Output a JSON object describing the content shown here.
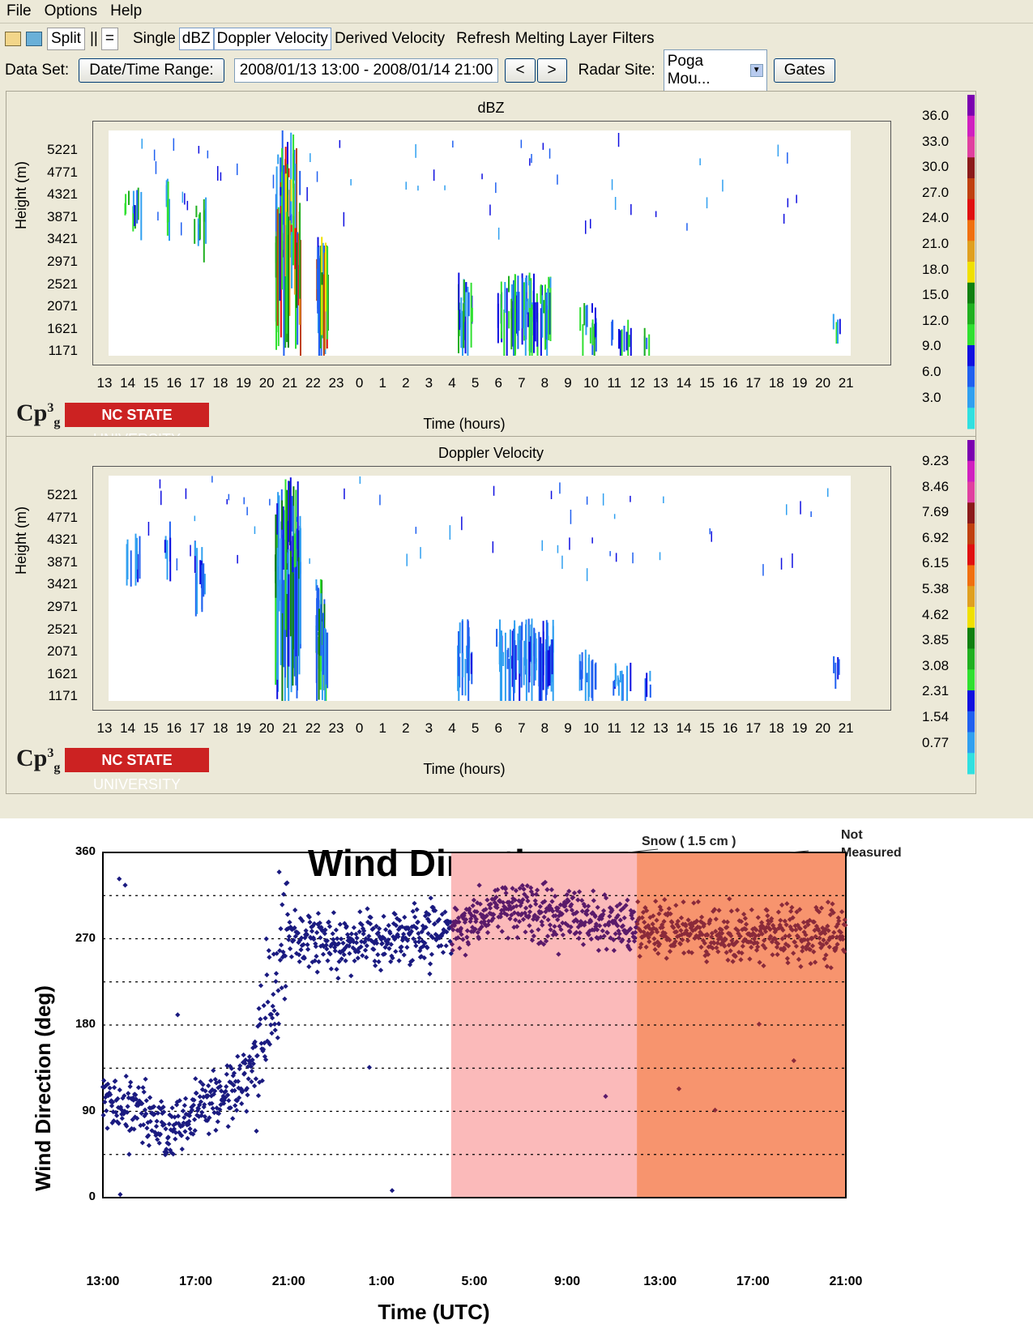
{
  "menu": [
    "File",
    "Options",
    "Help"
  ],
  "toolbar": {
    "split": "Split",
    "pipe": "||",
    "equals": "=",
    "single": "Single",
    "dbz": "dBZ",
    "doppler": "Doppler Velocity",
    "derived": "Derived Velocity",
    "refresh": "Refresh",
    "melting": "Melting Layer",
    "filters": "Filters"
  },
  "dataset": {
    "label": "Data Set:",
    "range_button": "Date/Time Range:",
    "range_value": "2008/01/13 13:00 - 2008/01/14 21:00",
    "prev": "<",
    "next": ">",
    "radar_label": "Radar Site:",
    "radar_value": "Poga Mou...",
    "gates": "Gates"
  },
  "radar_panels": [
    {
      "title": "dBZ",
      "ylabel": "Height (m)",
      "xlabel": "Time (hours)",
      "yticks": [
        "5221",
        "4771",
        "4321",
        "3871",
        "3421",
        "2971",
        "2521",
        "2071",
        "1621",
        "1171"
      ],
      "xticks": [
        "13",
        "14",
        "15",
        "16",
        "17",
        "18",
        "19",
        "20",
        "21",
        "22",
        "23",
        "0",
        "1",
        "2",
        "3",
        "4",
        "5",
        "6",
        "7",
        "8",
        "9",
        "10",
        "11",
        "12",
        "13",
        "14",
        "15",
        "16",
        "17",
        "18",
        "19",
        "20",
        "21"
      ],
      "colorbar_labels": [
        "36.0",
        "33.0",
        "30.0",
        "27.0",
        "24.0",
        "21.0",
        "18.0",
        "15.0",
        "12.0",
        "9.0",
        "6.0",
        "3.0"
      ]
    },
    {
      "title": "Doppler Velocity",
      "ylabel": "Height (m)",
      "xlabel": "Time (hours)",
      "yticks": [
        "5221",
        "4771",
        "4321",
        "3871",
        "3421",
        "2971",
        "2521",
        "2071",
        "1621",
        "1171"
      ],
      "xticks": [
        "13",
        "14",
        "15",
        "16",
        "17",
        "18",
        "19",
        "20",
        "21",
        "22",
        "23",
        "0",
        "1",
        "2",
        "3",
        "4",
        "5",
        "6",
        "7",
        "8",
        "9",
        "10",
        "11",
        "12",
        "13",
        "14",
        "15",
        "16",
        "17",
        "18",
        "19",
        "20",
        "21"
      ],
      "colorbar_labels": [
        "9.23",
        "8.46",
        "7.69",
        "6.92",
        "6.15",
        "5.38",
        "4.62",
        "3.85",
        "3.08",
        "2.31",
        "1.54",
        "0.77"
      ]
    }
  ],
  "logo": {
    "cp": "Cp",
    "sup": "3",
    "sub": "g",
    "university_a": "NC STATE",
    "university_b": " UNIVERSITY"
  },
  "colorbar_colors": [
    "#7b00b0",
    "#d020c0",
    "#e040a0",
    "#8b1a1a",
    "#c04010",
    "#e01010",
    "#f07010",
    "#e0a020",
    "#f0e000",
    "#108010",
    "#20b020",
    "#30e030",
    "#1010e0",
    "#2060f0",
    "#30a0f0",
    "#30e0e0"
  ],
  "wind_chart": {
    "title": "Wind Direction",
    "ylabel": "Wind Direction (deg)",
    "xlabel": "Time (UTC)",
    "ytick_labels": [
      "360",
      "270",
      "180",
      "90",
      "0"
    ],
    "xtick_labels": [
      "13:00",
      "17:00",
      "21:00",
      "1:00",
      "5:00",
      "9:00",
      "13:00",
      "17:00",
      "21:00"
    ],
    "annotation_snow": "Snow ( 1.5 cm )",
    "annotation_not": "Not",
    "annotation_measured": "Measured",
    "point_color": "#1a1a80",
    "snow_shade": "#fbbaba",
    "notmeasured_shade": "#f7946e"
  },
  "chart_data": {
    "type": "scatter",
    "title": "Wind Direction",
    "xlabel": "Time (UTC)",
    "ylabel": "Wind Direction (deg)",
    "x_ticks": [
      "13:00",
      "17:00",
      "21:00",
      "1:00",
      "5:00",
      "9:00",
      "13:00",
      "17:00",
      "21:00"
    ],
    "ylim": [
      0,
      360
    ],
    "grid": "horizontal dotted every 45 deg",
    "shaded_regions": [
      {
        "label": "Snow ( 1.5 cm )",
        "x_start": "4:00",
        "x_end": "12:00",
        "color": "#fbbaba"
      },
      {
        "label": "Not Measured",
        "x_start": "12:00",
        "x_end": "21:00",
        "color": "#f7946e"
      }
    ],
    "series_trend": [
      {
        "time_h": 0,
        "direction_deg": 100
      },
      {
        "time_h": 1.5,
        "direction_deg": 95
      },
      {
        "time_h": 2.8,
        "direction_deg": 70
      },
      {
        "time_h": 4,
        "direction_deg": 95
      },
      {
        "time_h": 5.5,
        "direction_deg": 110
      },
      {
        "time_h": 6.5,
        "direction_deg": 135
      },
      {
        "time_h": 7.2,
        "direction_deg": 200
      },
      {
        "time_h": 7.8,
        "direction_deg": 280
      },
      {
        "time_h": 9,
        "direction_deg": 270
      },
      {
        "time_h": 11,
        "direction_deg": 265
      },
      {
        "time_h": 13,
        "direction_deg": 270
      },
      {
        "time_h": 15,
        "direction_deg": 280
      },
      {
        "time_h": 17,
        "direction_deg": 305
      },
      {
        "time_h": 20,
        "direction_deg": 290
      },
      {
        "time_h": 22,
        "direction_deg": 285
      },
      {
        "time_h": 25,
        "direction_deg": 280
      },
      {
        "time_h": 28,
        "direction_deg": 270
      },
      {
        "time_h": 32,
        "direction_deg": 275
      }
    ]
  }
}
